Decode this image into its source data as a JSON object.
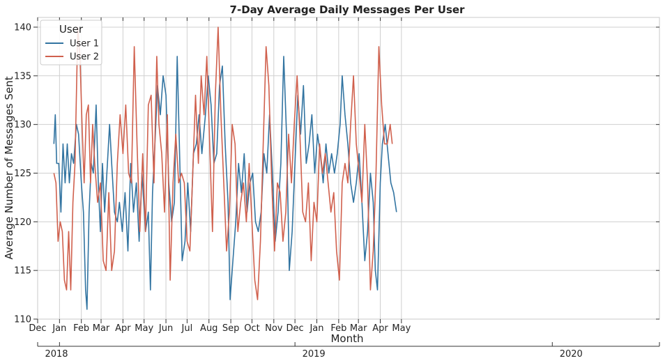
{
  "chart_data": {
    "type": "line",
    "title": "7-Day Average Daily Messages Per User",
    "xlabel": "Month",
    "ylabel": "Average Number of Messages Sent",
    "xlim": [
      "2017-12-01",
      "2020-05-01"
    ],
    "ylim": [
      110,
      141
    ],
    "yticks": [
      110,
      115,
      120,
      125,
      130,
      135,
      140
    ],
    "month_ticks": [
      {
        "date": "2017-12-01",
        "label": "Dec"
      },
      {
        "date": "2018-01-01",
        "label": "Jan"
      },
      {
        "date": "2018-02-01",
        "label": "Feb"
      },
      {
        "date": "2018-03-01",
        "label": "Mar"
      },
      {
        "date": "2018-04-01",
        "label": "Apr"
      },
      {
        "date": "2018-05-01",
        "label": "May"
      },
      {
        "date": "2018-06-01",
        "label": "Jun"
      },
      {
        "date": "2018-07-01",
        "label": "Jul"
      },
      {
        "date": "2018-08-01",
        "label": "Aug"
      },
      {
        "date": "2018-09-01",
        "label": "Sep"
      },
      {
        "date": "2018-10-01",
        "label": "Oct"
      },
      {
        "date": "2018-11-01",
        "label": "Nov"
      },
      {
        "date": "2018-12-01",
        "label": "Dec"
      },
      {
        "date": "2019-01-01",
        "label": "Jan"
      },
      {
        "date": "2019-02-01",
        "label": "Feb"
      },
      {
        "date": "2019-03-01",
        "label": "Mar"
      },
      {
        "date": "2019-04-01",
        "label": "Apr"
      },
      {
        "date": "2019-05-01",
        "label": "May"
      }
    ],
    "year_ticks": [
      {
        "date": "2017-12-01",
        "label": "2018"
      },
      {
        "date": "2018-01-01",
        "label": ""
      },
      {
        "date": "2018-12-01",
        "label": "2019"
      },
      {
        "date": "2019-12-01",
        "label": "2020"
      }
    ],
    "grid": true,
    "legend": {
      "title": "User",
      "position": "top-left"
    },
    "series": [
      {
        "name": "User 1",
        "color": "#3274A1",
        "points": [
          [
            "2017-12-24",
            128
          ],
          [
            "2017-12-26",
            131
          ],
          [
            "2017-12-28",
            126
          ],
          [
            "2017-12-31",
            126
          ],
          [
            "2018-01-03",
            121
          ],
          [
            "2018-01-06",
            128
          ],
          [
            "2018-01-09",
            124
          ],
          [
            "2018-01-12",
            128
          ],
          [
            "2018-01-15",
            124
          ],
          [
            "2018-01-18",
            127
          ],
          [
            "2018-01-21",
            126
          ],
          [
            "2018-01-25",
            130
          ],
          [
            "2018-01-28",
            129
          ],
          [
            "2018-02-01",
            124
          ],
          [
            "2018-02-04",
            121
          ],
          [
            "2018-02-07",
            113
          ],
          [
            "2018-02-09",
            111
          ],
          [
            "2018-02-12",
            121
          ],
          [
            "2018-02-15",
            126
          ],
          [
            "2018-02-18",
            125
          ],
          [
            "2018-02-22",
            132
          ],
          [
            "2018-02-25",
            124
          ],
          [
            "2018-02-28",
            119
          ],
          [
            "2018-03-03",
            126
          ],
          [
            "2018-03-06",
            121
          ],
          [
            "2018-03-10",
            126
          ],
          [
            "2018-03-13",
            130
          ],
          [
            "2018-03-16",
            126
          ],
          [
            "2018-03-20",
            121
          ],
          [
            "2018-03-24",
            120
          ],
          [
            "2018-03-27",
            122
          ],
          [
            "2018-03-31",
            119
          ],
          [
            "2018-04-04",
            123
          ],
          [
            "2018-04-08",
            117
          ],
          [
            "2018-04-12",
            126
          ],
          [
            "2018-04-16",
            121
          ],
          [
            "2018-04-20",
            124
          ],
          [
            "2018-04-24",
            118
          ],
          [
            "2018-04-28",
            125
          ],
          [
            "2018-05-03",
            119
          ],
          [
            "2018-05-07",
            121
          ],
          [
            "2018-05-10",
            113
          ],
          [
            "2018-05-13",
            123
          ],
          [
            "2018-05-17",
            129
          ],
          [
            "2018-05-20",
            134
          ],
          [
            "2018-05-24",
            131
          ],
          [
            "2018-05-28",
            135
          ],
          [
            "2018-06-01",
            133
          ],
          [
            "2018-06-05",
            124
          ],
          [
            "2018-06-09",
            120
          ],
          [
            "2018-06-13",
            122
          ],
          [
            "2018-06-17",
            137
          ],
          [
            "2018-06-20",
            128
          ],
          [
            "2018-06-24",
            116
          ],
          [
            "2018-06-28",
            118
          ],
          [
            "2018-07-02",
            124
          ],
          [
            "2018-07-06",
            119
          ],
          [
            "2018-07-10",
            127
          ],
          [
            "2018-07-14",
            128
          ],
          [
            "2018-07-18",
            131
          ],
          [
            "2018-07-22",
            127
          ],
          [
            "2018-07-27",
            131
          ],
          [
            "2018-07-31",
            135
          ],
          [
            "2018-08-04",
            132
          ],
          [
            "2018-08-08",
            126
          ],
          [
            "2018-08-12",
            127
          ],
          [
            "2018-08-16",
            134
          ],
          [
            "2018-08-20",
            136
          ],
          [
            "2018-08-24",
            128
          ],
          [
            "2018-08-28",
            122
          ],
          [
            "2018-08-31",
            112
          ],
          [
            "2018-09-04",
            116
          ],
          [
            "2018-09-08",
            120
          ],
          [
            "2018-09-12",
            126
          ],
          [
            "2018-09-16",
            123
          ],
          [
            "2018-09-20",
            127
          ],
          [
            "2018-09-24",
            121
          ],
          [
            "2018-09-28",
            124
          ],
          [
            "2018-10-02",
            125
          ],
          [
            "2018-10-06",
            120
          ],
          [
            "2018-10-10",
            119
          ],
          [
            "2018-10-14",
            121
          ],
          [
            "2018-10-18",
            127
          ],
          [
            "2018-10-22",
            125
          ],
          [
            "2018-10-26",
            131
          ],
          [
            "2018-10-30",
            125
          ],
          [
            "2018-11-03",
            118
          ],
          [
            "2018-11-07",
            121
          ],
          [
            "2018-11-11",
            126
          ],
          [
            "2018-11-15",
            137
          ],
          [
            "2018-11-19",
            129
          ],
          [
            "2018-11-23",
            115
          ],
          [
            "2018-11-27",
            119
          ],
          [
            "2018-12-01",
            126
          ],
          [
            "2018-12-05",
            133
          ],
          [
            "2018-12-09",
            129
          ],
          [
            "2018-12-13",
            134
          ],
          [
            "2018-12-17",
            126
          ],
          [
            "2018-12-21",
            128
          ],
          [
            "2018-12-25",
            131
          ],
          [
            "2018-12-29",
            125
          ],
          [
            "2019-01-02",
            129
          ],
          [
            "2019-01-06",
            127
          ],
          [
            "2019-01-10",
            124
          ],
          [
            "2019-01-14",
            128
          ],
          [
            "2019-01-18",
            125
          ],
          [
            "2019-01-22",
            127
          ],
          [
            "2019-01-26",
            125
          ],
          [
            "2019-01-30",
            127
          ],
          [
            "2019-02-03",
            130
          ],
          [
            "2019-02-06",
            135
          ],
          [
            "2019-02-10",
            131
          ],
          [
            "2019-02-14",
            128
          ],
          [
            "2019-02-18",
            124
          ],
          [
            "2019-02-22",
            122
          ],
          [
            "2019-02-26",
            124
          ],
          [
            "2019-03-02",
            127
          ],
          [
            "2019-03-06",
            122
          ],
          [
            "2019-03-10",
            116
          ],
          [
            "2019-03-14",
            119
          ],
          [
            "2019-03-18",
            125
          ],
          [
            "2019-03-22",
            122
          ],
          [
            "2019-03-25",
            115
          ],
          [
            "2019-03-28",
            113
          ],
          [
            "2019-04-01",
            124
          ],
          [
            "2019-04-04",
            128
          ],
          [
            "2019-04-08",
            130
          ],
          [
            "2019-04-12",
            127
          ],
          [
            "2019-04-16",
            124
          ],
          [
            "2019-04-20",
            123
          ],
          [
            "2019-04-24",
            121
          ]
        ]
      },
      {
        "name": "User 2",
        "color": "#D0604D",
        "points": [
          [
            "2017-12-24",
            125
          ],
          [
            "2017-12-27",
            124
          ],
          [
            "2017-12-30",
            118
          ],
          [
            "2018-01-02",
            120
          ],
          [
            "2018-01-05",
            119
          ],
          [
            "2018-01-08",
            114
          ],
          [
            "2018-01-11",
            113
          ],
          [
            "2018-01-14",
            119
          ],
          [
            "2018-01-17",
            113
          ],
          [
            "2018-01-20",
            122
          ],
          [
            "2018-01-23",
            126
          ],
          [
            "2018-01-27",
            140
          ],
          [
            "2018-01-30",
            137
          ],
          [
            "2018-02-02",
            130
          ],
          [
            "2018-02-05",
            124
          ],
          [
            "2018-02-08",
            131
          ],
          [
            "2018-02-11",
            132
          ],
          [
            "2018-02-14",
            124
          ],
          [
            "2018-02-17",
            130
          ],
          [
            "2018-02-20",
            126
          ],
          [
            "2018-02-24",
            122
          ],
          [
            "2018-02-28",
            124
          ],
          [
            "2018-03-04",
            116
          ],
          [
            "2018-03-08",
            115
          ],
          [
            "2018-03-12",
            123
          ],
          [
            "2018-03-16",
            115
          ],
          [
            "2018-03-20",
            117
          ],
          [
            "2018-03-24",
            126
          ],
          [
            "2018-03-28",
            131
          ],
          [
            "2018-04-01",
            127
          ],
          [
            "2018-04-05",
            132
          ],
          [
            "2018-04-09",
            125
          ],
          [
            "2018-04-13",
            124
          ],
          [
            "2018-04-17",
            138
          ],
          [
            "2018-04-21",
            128
          ],
          [
            "2018-04-25",
            119
          ],
          [
            "2018-04-29",
            127
          ],
          [
            "2018-05-03",
            119
          ],
          [
            "2018-05-07",
            132
          ],
          [
            "2018-05-11",
            133
          ],
          [
            "2018-05-15",
            124
          ],
          [
            "2018-05-19",
            137
          ],
          [
            "2018-05-22",
            130
          ],
          [
            "2018-05-26",
            127
          ],
          [
            "2018-05-30",
            121
          ],
          [
            "2018-06-03",
            131
          ],
          [
            "2018-06-07",
            114
          ],
          [
            "2018-06-11",
            124
          ],
          [
            "2018-06-15",
            129
          ],
          [
            "2018-06-19",
            124
          ],
          [
            "2018-06-23",
            125
          ],
          [
            "2018-06-27",
            124
          ],
          [
            "2018-07-01",
            118
          ],
          [
            "2018-07-05",
            117
          ],
          [
            "2018-07-09",
            125
          ],
          [
            "2018-07-13",
            133
          ],
          [
            "2018-07-17",
            126
          ],
          [
            "2018-07-21",
            135
          ],
          [
            "2018-07-25",
            131
          ],
          [
            "2018-07-29",
            137
          ],
          [
            "2018-08-02",
            128
          ],
          [
            "2018-08-06",
            119
          ],
          [
            "2018-08-10",
            133
          ],
          [
            "2018-08-14",
            140
          ],
          [
            "2018-08-18",
            131
          ],
          [
            "2018-08-22",
            124
          ],
          [
            "2018-08-26",
            117
          ],
          [
            "2018-08-30",
            121
          ],
          [
            "2018-09-03",
            130
          ],
          [
            "2018-09-07",
            128
          ],
          [
            "2018-09-11",
            119
          ],
          [
            "2018-09-15",
            122
          ],
          [
            "2018-09-19",
            124
          ],
          [
            "2018-09-23",
            120
          ],
          [
            "2018-09-27",
            126
          ],
          [
            "2018-10-01",
            120
          ],
          [
            "2018-10-05",
            114
          ],
          [
            "2018-10-09",
            112
          ],
          [
            "2018-10-13",
            118
          ],
          [
            "2018-10-17",
            128
          ],
          [
            "2018-10-21",
            138
          ],
          [
            "2018-10-25",
            134
          ],
          [
            "2018-10-29",
            124
          ],
          [
            "2018-11-02",
            117
          ],
          [
            "2018-11-06",
            124
          ],
          [
            "2018-11-10",
            123
          ],
          [
            "2018-11-14",
            118
          ],
          [
            "2018-11-18",
            121
          ],
          [
            "2018-11-22",
            129
          ],
          [
            "2018-11-26",
            124
          ],
          [
            "2018-11-30",
            130
          ],
          [
            "2018-12-04",
            135
          ],
          [
            "2018-12-08",
            129
          ],
          [
            "2018-12-12",
            121
          ],
          [
            "2018-12-16",
            120
          ],
          [
            "2018-12-20",
            124
          ],
          [
            "2018-12-24",
            116
          ],
          [
            "2018-12-28",
            122
          ],
          [
            "2019-01-01",
            120
          ],
          [
            "2019-01-05",
            128
          ],
          [
            "2019-01-09",
            125
          ],
          [
            "2019-01-13",
            127
          ],
          [
            "2019-01-17",
            124
          ],
          [
            "2019-01-21",
            121
          ],
          [
            "2019-01-25",
            123
          ],
          [
            "2019-01-29",
            117
          ],
          [
            "2019-02-02",
            114
          ],
          [
            "2019-02-06",
            124
          ],
          [
            "2019-02-10",
            126
          ],
          [
            "2019-02-14",
            124
          ],
          [
            "2019-02-18",
            130
          ],
          [
            "2019-02-22",
            135
          ],
          [
            "2019-02-26",
            128
          ],
          [
            "2019-03-02",
            125
          ],
          [
            "2019-03-06",
            122
          ],
          [
            "2019-03-10",
            130
          ],
          [
            "2019-03-14",
            124
          ],
          [
            "2019-03-18",
            113
          ],
          [
            "2019-03-22",
            117
          ],
          [
            "2019-03-26",
            125
          ],
          [
            "2019-03-30",
            138
          ],
          [
            "2019-04-03",
            132
          ],
          [
            "2019-04-07",
            128
          ],
          [
            "2019-04-11",
            128
          ],
          [
            "2019-04-15",
            130
          ],
          [
            "2019-04-18",
            128
          ]
        ]
      }
    ]
  }
}
